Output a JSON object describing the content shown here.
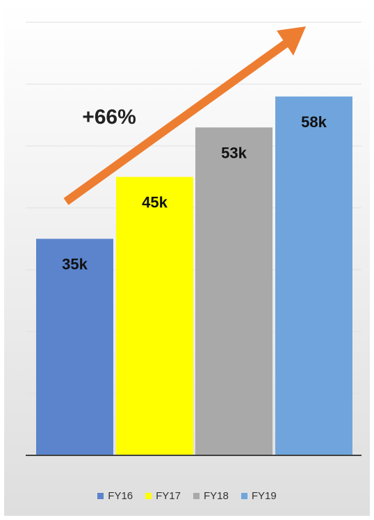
{
  "chart_data": {
    "type": "bar",
    "categories": [
      "FY16",
      "FY17",
      "FY18",
      "FY19"
    ],
    "values": [
      35,
      45,
      53,
      58
    ],
    "data_labels": [
      "35k",
      "45k",
      "53k",
      "58k"
    ],
    "colors": [
      "#5b84cc",
      "#ffff00",
      "#a9a9a9",
      "#6fa5dc"
    ],
    "annotation": "+66%",
    "arrow_color": "#ed7d31",
    "ylim": [
      0,
      70
    ],
    "grid": true,
    "legend": "bottom"
  },
  "legend": {
    "items": [
      {
        "label": "FY16",
        "color": "#5b84cc"
      },
      {
        "label": "FY17",
        "color": "#ffff00"
      },
      {
        "label": "FY18",
        "color": "#a9a9a9"
      },
      {
        "label": "FY19",
        "color": "#6fa5dc"
      }
    ]
  }
}
